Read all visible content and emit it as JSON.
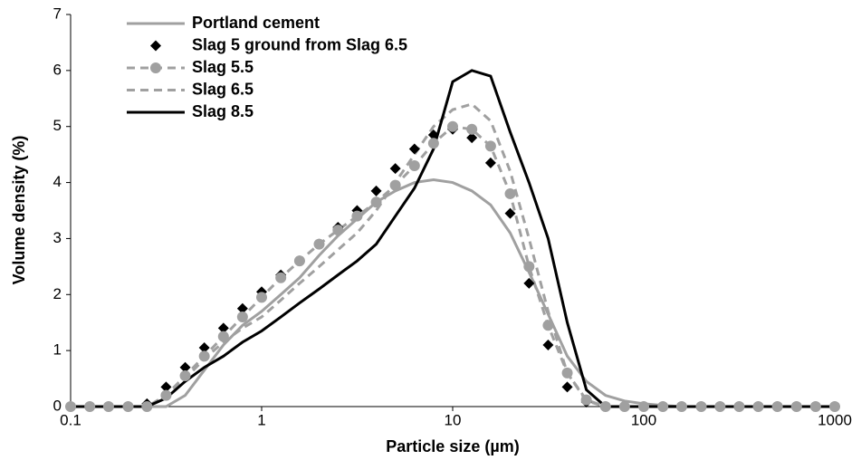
{
  "chart_data": {
    "type": "line",
    "x_scale": "log",
    "xlabel": "Particle size (µm)",
    "ylabel": "Volume density (%)",
    "xlim": [
      0.1,
      1000
    ],
    "xticks": [
      0.1,
      1,
      10,
      100,
      1000
    ],
    "ylim": [
      0,
      7
    ],
    "yticks": [
      0,
      1,
      2,
      3,
      4,
      5,
      6,
      7
    ],
    "grid": false,
    "legend": "upper left",
    "x": [
      0.1,
      0.126,
      0.158,
      0.2,
      0.251,
      0.316,
      0.398,
      0.501,
      0.631,
      0.794,
      1,
      1.26,
      1.58,
      2,
      2.51,
      3.16,
      3.98,
      5.01,
      6.31,
      7.94,
      10,
      12.6,
      15.8,
      20,
      25.1,
      31.6,
      39.8,
      50.1,
      63.1,
      79.4,
      100,
      126,
      158,
      200,
      251,
      316,
      398,
      501,
      631,
      794,
      1000
    ],
    "series": [
      {
        "name": "Portland cement",
        "color": "#a0a0a0",
        "line_style": "solid",
        "marker": "none",
        "values": [
          0,
          0,
          0,
          0,
          0,
          0,
          0.2,
          0.65,
          1.1,
          1.45,
          1.7,
          2.0,
          2.3,
          2.7,
          3.05,
          3.35,
          3.65,
          3.85,
          4.0,
          4.05,
          4.0,
          3.85,
          3.6,
          3.1,
          2.4,
          1.65,
          0.9,
          0.45,
          0.2,
          0.1,
          0.05,
          0.02,
          0,
          0,
          0,
          0,
          0,
          0,
          0,
          0,
          0
        ]
      },
      {
        "name": "Slag 5 ground from Slag 6.5",
        "color": "#000000",
        "line_style": "none",
        "marker": "diamond",
        "values": [
          0,
          0,
          0,
          0,
          0.05,
          0.35,
          0.7,
          1.05,
          1.4,
          1.75,
          2.05,
          2.35,
          2.6,
          2.9,
          3.2,
          3.5,
          3.85,
          4.25,
          4.6,
          4.85,
          4.95,
          4.8,
          4.35,
          3.45,
          2.2,
          1.1,
          0.35,
          0.08,
          0,
          0,
          0,
          0,
          0,
          0,
          0,
          0,
          0,
          0,
          0,
          0,
          0
        ]
      },
      {
        "name": "Slag 5.5",
        "color": "#a0a0a0",
        "line_style": "dashed",
        "marker": "circle",
        "values": [
          0,
          0,
          0,
          0,
          0,
          0.2,
          0.55,
          0.9,
          1.25,
          1.6,
          1.95,
          2.3,
          2.6,
          2.9,
          3.15,
          3.4,
          3.65,
          3.95,
          4.3,
          4.7,
          5.0,
          4.95,
          4.65,
          3.8,
          2.5,
          1.45,
          0.6,
          0.12,
          0,
          0,
          0,
          0,
          0,
          0,
          0,
          0,
          0,
          0,
          0,
          0,
          0
        ]
      },
      {
        "name": "Slag 6.5",
        "color": "#a0a0a0",
        "line_style": "dashed",
        "marker": "none",
        "values": [
          0,
          0,
          0,
          0,
          0,
          0.15,
          0.5,
          0.85,
          1.15,
          1.4,
          1.6,
          1.9,
          2.2,
          2.5,
          2.8,
          3.1,
          3.5,
          4.0,
          4.5,
          5.0,
          5.3,
          5.4,
          5.1,
          4.2,
          3.0,
          1.7,
          0.6,
          0.1,
          0,
          0,
          0,
          0,
          0,
          0,
          0,
          0,
          0,
          0,
          0,
          0,
          0
        ]
      },
      {
        "name": "Slag 8.5",
        "color": "#000000",
        "line_style": "solid",
        "marker": "none",
        "values": [
          0,
          0,
          0,
          0,
          0,
          0.15,
          0.45,
          0.7,
          0.9,
          1.15,
          1.35,
          1.6,
          1.85,
          2.1,
          2.35,
          2.6,
          2.9,
          3.4,
          3.9,
          4.6,
          5.8,
          6.0,
          5.9,
          4.9,
          4.0,
          3.0,
          1.5,
          0.3,
          0,
          0,
          0,
          0,
          0,
          0,
          0,
          0,
          0,
          0,
          0,
          0,
          0
        ]
      }
    ]
  }
}
